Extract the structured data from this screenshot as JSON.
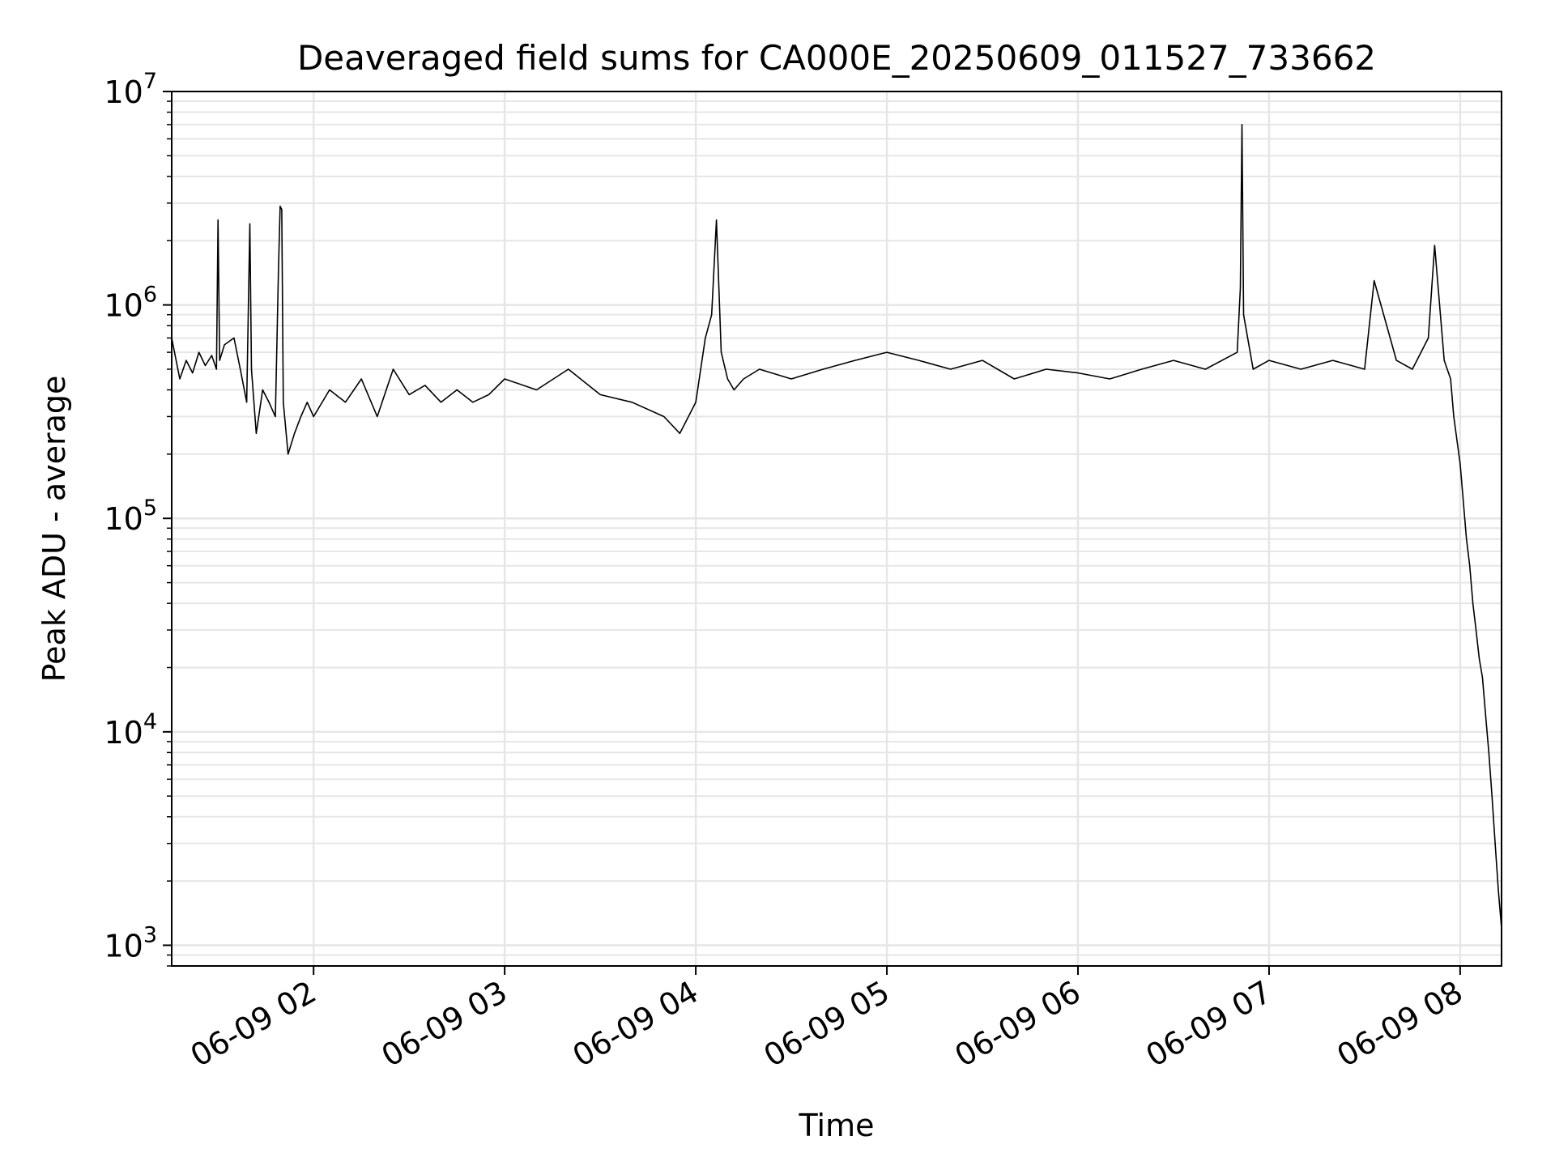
{
  "chart_data": {
    "type": "line",
    "title": "Deaveraged field sums for CA000E_20250609_011527_733662",
    "xlabel": "Time",
    "ylabel": "Peak ADU - average",
    "yscale": "log",
    "ylim": [
      800,
      10000000
    ],
    "xlim": [
      "2025-06-09 01:15:27",
      "2025-06-09 08:13:00"
    ],
    "grid": true,
    "line_color": "#000000",
    "grid_color": "#e6e6e6",
    "x_ticks": [
      {
        "label": "06-09 02",
        "value": "2025-06-09 02:00:00"
      },
      {
        "label": "06-09 03",
        "value": "2025-06-09 03:00:00"
      },
      {
        "label": "06-09 04",
        "value": "2025-06-09 04:00:00"
      },
      {
        "label": "06-09 05",
        "value": "2025-06-09 05:00:00"
      },
      {
        "label": "06-09 06",
        "value": "2025-06-09 06:00:00"
      },
      {
        "label": "06-09 07",
        "value": "2025-06-09 07:00:00"
      },
      {
        "label": "06-09 08",
        "value": "2025-06-09 08:00:00"
      }
    ],
    "y_ticks": [
      {
        "base": "10",
        "exp": "3",
        "value": 1000
      },
      {
        "base": "10",
        "exp": "4",
        "value": 10000
      },
      {
        "base": "10",
        "exp": "5",
        "value": 100000
      },
      {
        "base": "10",
        "exp": "6",
        "value": 1000000
      },
      {
        "base": "10",
        "exp": "7",
        "value": 10000000
      }
    ],
    "series": [
      {
        "x": [
          "2025-06-09 01:15:27",
          "2025-06-09 01:18:00",
          "2025-06-09 01:20:00",
          "2025-06-09 01:22:00",
          "2025-06-09 01:24:00",
          "2025-06-09 01:26:00",
          "2025-06-09 01:28:00",
          "2025-06-09 01:29:30",
          "2025-06-09 01:30:00",
          "2025-06-09 01:30:30",
          "2025-06-09 01:32:00",
          "2025-06-09 01:35:00",
          "2025-06-09 01:37:00",
          "2025-06-09 01:39:00",
          "2025-06-09 01:40:00",
          "2025-06-09 01:40:30",
          "2025-06-09 01:42:00",
          "2025-06-09 01:44:00",
          "2025-06-09 01:46:00",
          "2025-06-09 01:48:00",
          "2025-06-09 01:49:00",
          "2025-06-09 01:49:30",
          "2025-06-09 01:50:00",
          "2025-06-09 01:50:30",
          "2025-06-09 01:52:00",
          "2025-06-09 01:54:00",
          "2025-06-09 01:56:00",
          "2025-06-09 01:58:00",
          "2025-06-09 02:00:00",
          "2025-06-09 02:05:00",
          "2025-06-09 02:10:00",
          "2025-06-09 02:15:00",
          "2025-06-09 02:20:00",
          "2025-06-09 02:25:00",
          "2025-06-09 02:30:00",
          "2025-06-09 02:35:00",
          "2025-06-09 02:40:00",
          "2025-06-09 02:45:00",
          "2025-06-09 02:50:00",
          "2025-06-09 02:55:00",
          "2025-06-09 03:00:00",
          "2025-06-09 03:10:00",
          "2025-06-09 03:20:00",
          "2025-06-09 03:30:00",
          "2025-06-09 03:40:00",
          "2025-06-09 03:50:00",
          "2025-06-09 03:55:00",
          "2025-06-09 04:00:00",
          "2025-06-09 04:03:00",
          "2025-06-09 04:05:00",
          "2025-06-09 04:06:00",
          "2025-06-09 04:06:30",
          "2025-06-09 04:08:00",
          "2025-06-09 04:10:00",
          "2025-06-09 04:12:00",
          "2025-06-09 04:15:00",
          "2025-06-09 04:20:00",
          "2025-06-09 04:30:00",
          "2025-06-09 04:40:00",
          "2025-06-09 04:50:00",
          "2025-06-09 05:00:00",
          "2025-06-09 05:10:00",
          "2025-06-09 05:20:00",
          "2025-06-09 05:30:00",
          "2025-06-09 05:40:00",
          "2025-06-09 05:50:00",
          "2025-06-09 06:00:00",
          "2025-06-09 06:10:00",
          "2025-06-09 06:20:00",
          "2025-06-09 06:30:00",
          "2025-06-09 06:40:00",
          "2025-06-09 06:50:00",
          "2025-06-09 06:51:00",
          "2025-06-09 06:51:30",
          "2025-06-09 06:52:00",
          "2025-06-09 06:55:00",
          "2025-06-09 07:00:00",
          "2025-06-09 07:10:00",
          "2025-06-09 07:20:00",
          "2025-06-09 07:30:00",
          "2025-06-09 07:33:00",
          "2025-06-09 07:40:00",
          "2025-06-09 07:45:00",
          "2025-06-09 07:50:00",
          "2025-06-09 07:52:00",
          "2025-06-09 07:55:00",
          "2025-06-09 07:57:00",
          "2025-06-09 07:58:00",
          "2025-06-09 08:00:00",
          "2025-06-09 08:02:00",
          "2025-06-09 08:03:00",
          "2025-06-09 08:04:00",
          "2025-06-09 08:05:00",
          "2025-06-09 08:06:00",
          "2025-06-09 08:07:00",
          "2025-06-09 08:08:00",
          "2025-06-09 08:09:00",
          "2025-06-09 08:10:00",
          "2025-06-09 08:11:00",
          "2025-06-09 08:12:00",
          "2025-06-09 08:13:00"
        ],
        "y": [
          700000,
          450000,
          550000,
          480000,
          600000,
          520000,
          580000,
          500000,
          2500000,
          550000,
          650000,
          700000,
          500000,
          350000,
          2400000,
          500000,
          250000,
          400000,
          350000,
          300000,
          1500000,
          2900000,
          2800000,
          350000,
          200000,
          250000,
          300000,
          350000,
          300000,
          400000,
          350000,
          450000,
          300000,
          500000,
          380000,
          420000,
          350000,
          400000,
          350000,
          380000,
          450000,
          400000,
          500000,
          380000,
          350000,
          300000,
          250000,
          350000,
          700000,
          900000,
          1800000,
          2500000,
          600000,
          450000,
          400000,
          450000,
          500000,
          450000,
          500000,
          550000,
          600000,
          550000,
          500000,
          550000,
          450000,
          500000,
          480000,
          450000,
          500000,
          550000,
          500000,
          600000,
          1200000,
          7000000,
          900000,
          500000,
          550000,
          500000,
          550000,
          500000,
          1300000,
          550000,
          500000,
          700000,
          1900000,
          550000,
          450000,
          300000,
          180000,
          80000,
          60000,
          40000,
          30000,
          22000,
          18000,
          12000,
          8000,
          5000,
          3000,
          1800,
          1200
        ]
      }
    ]
  }
}
